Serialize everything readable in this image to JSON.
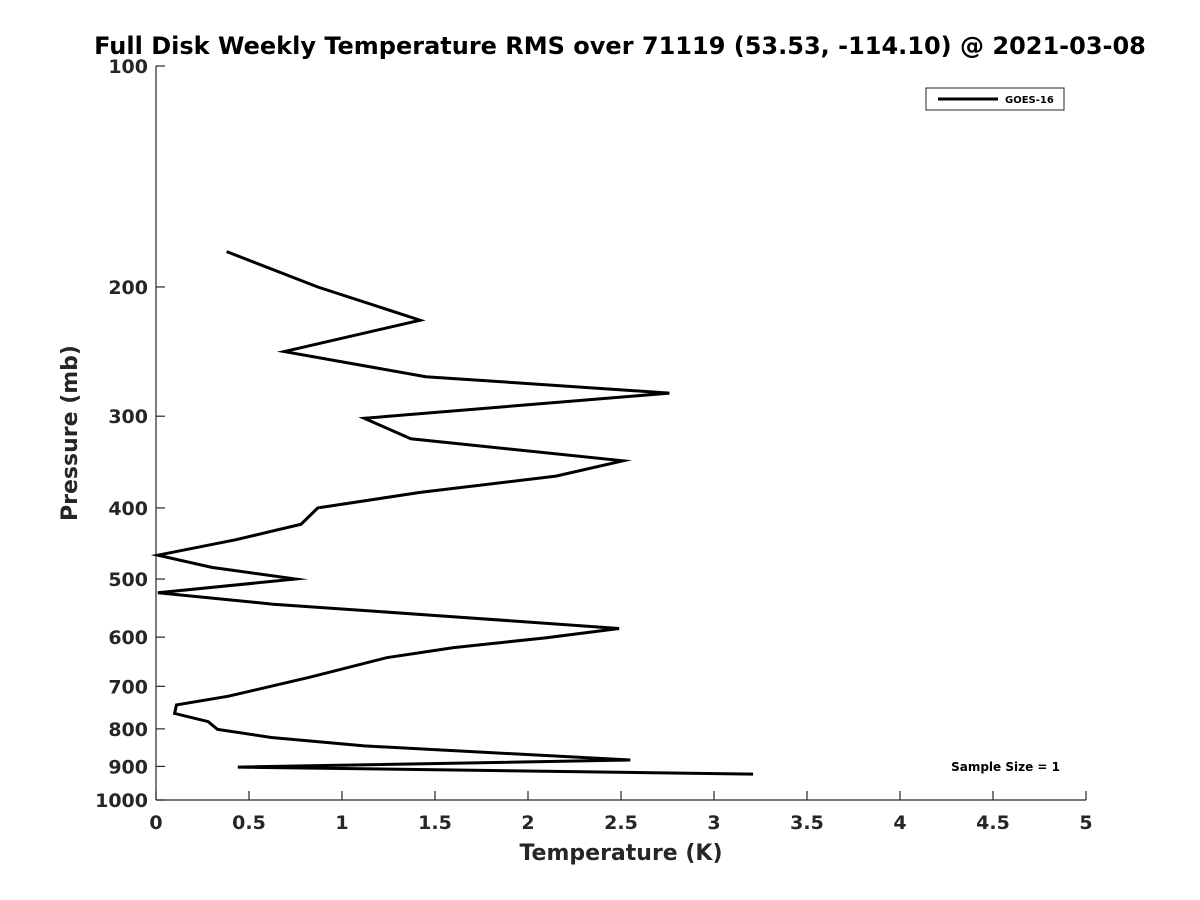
{
  "chart_data": {
    "type": "line",
    "title": "Full Disk Weekly Temperature RMS over 71119 (53.53, -114.10) @ 2021-03-08",
    "xlabel": "Temperature (K)",
    "ylabel": "Pressure (mb)",
    "xlim": [
      0,
      5
    ],
    "ylim": [
      100,
      1000
    ],
    "y_scale": "log",
    "y_reversed": true,
    "xticks": [
      0,
      0.5,
      1,
      1.5,
      2,
      2.5,
      3,
      3.5,
      4,
      4.5,
      5
    ],
    "xtick_labels": [
      "0",
      "0.5",
      "1",
      "1.5",
      "2",
      "2.5",
      "3",
      "3.5",
      "4",
      "4.5",
      "5"
    ],
    "yticks": [
      100,
      200,
      300,
      400,
      500,
      600,
      700,
      800,
      900,
      1000
    ],
    "ytick_labels": [
      "100",
      "200",
      "300",
      "400",
      "500",
      "600",
      "700",
      "800",
      "900",
      "1000"
    ],
    "grid": false,
    "legend_position": "top-right",
    "series": [
      {
        "name": "GOES-16",
        "color": "#000000",
        "points": [
          {
            "t": 0.38,
            "p": 179
          },
          {
            "t": 0.87,
            "p": 200
          },
          {
            "t": 1.42,
            "p": 222
          },
          {
            "t": 0.69,
            "p": 245
          },
          {
            "t": 1.45,
            "p": 265
          },
          {
            "t": 2.76,
            "p": 279
          },
          {
            "t": 1.12,
            "p": 302
          },
          {
            "t": 1.37,
            "p": 322
          },
          {
            "t": 2.51,
            "p": 345
          },
          {
            "t": 2.15,
            "p": 362
          },
          {
            "t": 1.42,
            "p": 381
          },
          {
            "t": 0.87,
            "p": 400
          },
          {
            "t": 0.78,
            "p": 421
          },
          {
            "t": 0.43,
            "p": 442
          },
          {
            "t": 0.01,
            "p": 464
          },
          {
            "t": 0.3,
            "p": 482
          },
          {
            "t": 0.75,
            "p": 500
          },
          {
            "t": 0.01,
            "p": 522
          },
          {
            "t": 0.63,
            "p": 541
          },
          {
            "t": 1.52,
            "p": 561
          },
          {
            "t": 2.49,
            "p": 584
          },
          {
            "t": 2.1,
            "p": 601
          },
          {
            "t": 1.6,
            "p": 620
          },
          {
            "t": 1.24,
            "p": 640
          },
          {
            "t": 0.83,
            "p": 680
          },
          {
            "t": 0.39,
            "p": 722
          },
          {
            "t": 0.11,
            "p": 742
          },
          {
            "t": 0.1,
            "p": 762
          },
          {
            "t": 0.28,
            "p": 782
          },
          {
            "t": 0.33,
            "p": 801
          },
          {
            "t": 0.62,
            "p": 822
          },
          {
            "t": 1.12,
            "p": 844
          },
          {
            "t": 2.55,
            "p": 882
          },
          {
            "t": 0.44,
            "p": 902
          },
          {
            "t": 3.21,
            "p": 922
          }
        ]
      }
    ],
    "annotation": "Sample Size = 1"
  }
}
